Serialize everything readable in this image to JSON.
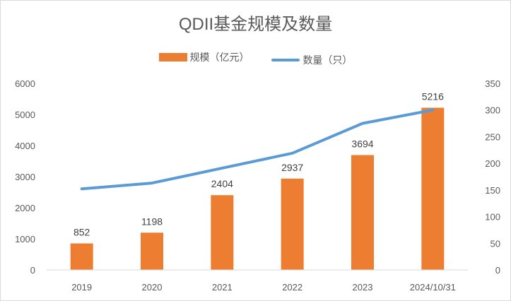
{
  "chart_data": {
    "type": "bar",
    "title": "QDII基金规模及数量",
    "categories": [
      "2019",
      "2020",
      "2021",
      "2022",
      "2023",
      "2024/10/31"
    ],
    "series": [
      {
        "name": "规模（亿元）",
        "type": "bar",
        "axis": "left",
        "color": "#ED7D31",
        "values": [
          852,
          1198,
          2404,
          2937,
          3694,
          5216
        ]
      },
      {
        "name": "数量（只）",
        "type": "line",
        "axis": "right",
        "color": "#5B9BD5",
        "values": [
          152,
          163,
          191,
          219,
          275,
          300
        ]
      }
    ],
    "y_left": {
      "min": 0,
      "max": 6000,
      "ticks": [
        "0",
        "1000",
        "2000",
        "3000",
        "4000",
        "5000",
        "6000"
      ]
    },
    "y_right": {
      "min": 0,
      "max": 350,
      "ticks": [
        "0",
        "50",
        "100",
        "150",
        "200",
        "250",
        "300",
        "350"
      ]
    },
    "data_labels": [
      "852",
      "1198",
      "2404",
      "2937",
      "3694",
      "5216"
    ],
    "legend_position": "top",
    "grid": false
  }
}
